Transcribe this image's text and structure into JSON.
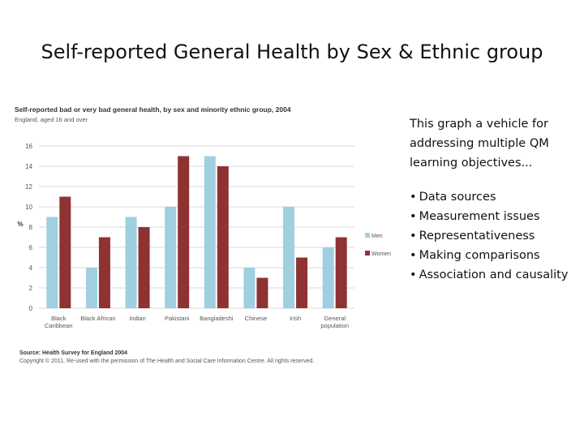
{
  "slide": {
    "title": "Self-reported General Health by Sex & Ethnic group"
  },
  "chart_data": {
    "type": "bar",
    "title": "Self-reported bad or very bad general health, by sex and minority ethnic group, 2004",
    "subtitle": "England, aged 16 and over",
    "ylabel": "%",
    "xlabel": "",
    "ylim": [
      0,
      16
    ],
    "yticks": [
      0,
      2,
      4,
      6,
      8,
      10,
      12,
      14,
      16
    ],
    "grid": true,
    "legend_position": "right",
    "categories": [
      [
        "Black",
        "Caribbean"
      ],
      [
        "Black African"
      ],
      [
        "Indian"
      ],
      [
        "Pakistani"
      ],
      [
        "Bangladeshi"
      ],
      [
        "Chinese"
      ],
      [
        "Irish"
      ],
      [
        "General",
        "population"
      ]
    ],
    "series": [
      {
        "name": "Men",
        "color": "#9fcfe0",
        "values": [
          9,
          4,
          9,
          10,
          15,
          4,
          10,
          6
        ]
      },
      {
        "name": "Women",
        "color": "#8f3232",
        "values": [
          11,
          7,
          8,
          15,
          14,
          3,
          5,
          7
        ]
      }
    ],
    "source": "Source: Health Survey for England 2004",
    "copyright": "Copyright © 2011, Re-used with the permission of The Health and Social Care Information Centre. All rights reserved."
  },
  "side_text": {
    "intro": "This graph a vehicle for\naddressing multiple QM\nlearning objectives...",
    "bullet_char": "•",
    "bullets": [
      "Data sources",
      "Measurement issues",
      "Representativeness",
      "Making comparisons",
      "Association and causality"
    ]
  },
  "colors": {
    "men": "#9fcfe0",
    "women": "#8f3232",
    "grid": "#d8d8d8",
    "axis_text": "#555555"
  }
}
